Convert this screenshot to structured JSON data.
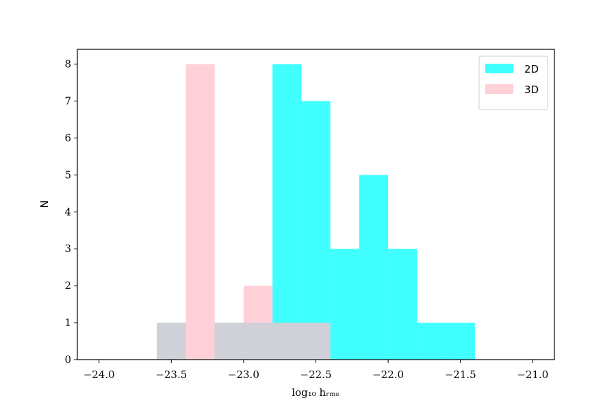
{
  "chart_data": {
    "type": "histogram",
    "xlabel": "log₁₀ hᵣₘₛ",
    "ylabel": "N",
    "bins": [
      -23.6,
      -23.4,
      -23.2,
      -23.0,
      -22.8,
      -22.6,
      -22.4,
      -22.2,
      -22.0,
      -21.8,
      -21.6,
      -21.4
    ],
    "series": [
      {
        "name": "2D",
        "color": "#00ffff",
        "values": [
          1,
          0,
          1,
          1,
          8,
          7,
          3,
          5,
          3,
          1,
          1
        ]
      },
      {
        "name": "3D",
        "color": "#ffc0cb",
        "values": [
          1,
          8,
          1,
          2,
          1,
          1,
          0,
          0,
          0,
          0,
          0
        ]
      }
    ],
    "alpha": 0.75,
    "xlim": [
      -24.15,
      -20.85
    ],
    "ylim": [
      0,
      8.4
    ],
    "xticks": [
      {
        "value": -24.0,
        "label": "−24.0"
      },
      {
        "value": -23.5,
        "label": "−23.5"
      },
      {
        "value": -23.0,
        "label": "−23.0"
      },
      {
        "value": -22.5,
        "label": "−22.5"
      },
      {
        "value": -22.0,
        "label": "−22.0"
      },
      {
        "value": -21.5,
        "label": "−21.5"
      },
      {
        "value": -21.0,
        "label": "−21.0"
      }
    ],
    "yticks": [
      0,
      1,
      2,
      3,
      4,
      5,
      6,
      7,
      8
    ],
    "legend": "upper right"
  }
}
